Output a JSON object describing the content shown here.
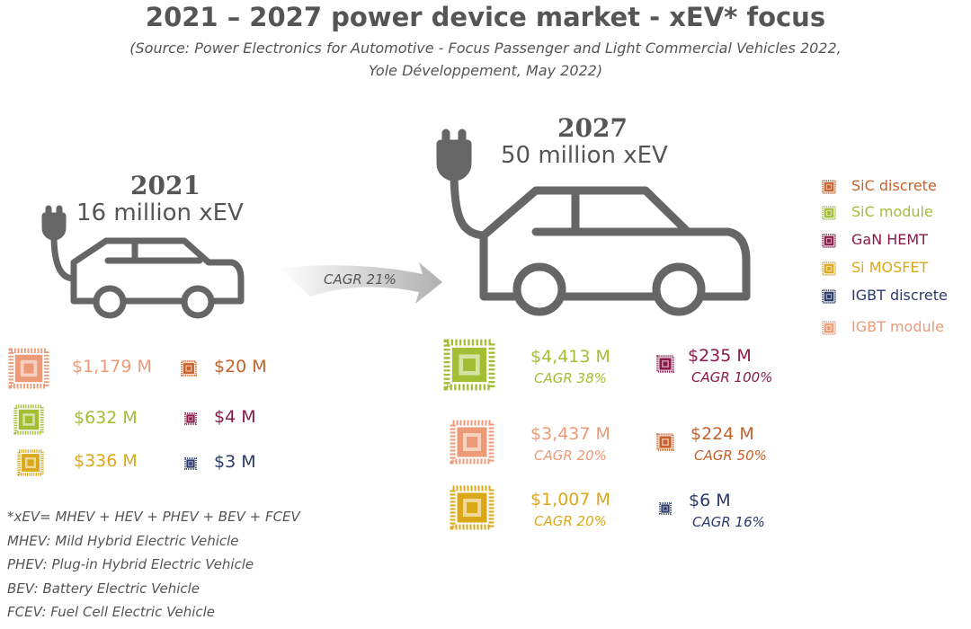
{
  "header": {
    "title": "2021 – 2027 power device market - xEV* focus",
    "source": [
      "(Source: Power Electronics for Automotive - Focus Passenger and Light Commercial Vehicles 2022,",
      "Yole Développement, May 2022)"
    ]
  },
  "y2021": {
    "year": "2021",
    "subtitle": "16 million xEV",
    "items": [
      {
        "value": "$1,179 M",
        "color": "#ec9a78"
      },
      {
        "value": "$20 M",
        "color": "#c8602a"
      },
      {
        "value": "$632 M",
        "color": "#a2bf34"
      },
      {
        "value": "$4 M",
        "color": "#8a1a4a"
      },
      {
        "value": "$336 M",
        "color": "#dba81a"
      },
      {
        "value": "$3 M",
        "color": "#2a3a6a"
      }
    ]
  },
  "growth": "CAGR 21%",
  "y2027": {
    "year": "2027",
    "subtitle": "50 million xEV",
    "items": [
      {
        "value": "$4,413 M",
        "cagr": "CAGR 38%",
        "color": "#a2bf34"
      },
      {
        "value": "$235 M",
        "cagr": "CAGR 100%",
        "color": "#8a1a4a"
      },
      {
        "value": "$3,437 M",
        "cagr": "CAGR 20%",
        "color": "#ec9a78"
      },
      {
        "value": "$224 M",
        "cagr": "CAGR 50%",
        "color": "#c8602a"
      },
      {
        "value": "$1,007 M",
        "cagr": "CAGR 20%",
        "color": "#dba81a"
      },
      {
        "value": "$6 M",
        "cagr": "CAGR 16%",
        "color": "#2a3a6a"
      }
    ]
  },
  "legend": [
    {
      "label": "SiC discrete",
      "color": "#c8602a"
    },
    {
      "label": "SiC module",
      "color": "#a2bf34"
    },
    {
      "label": "GaN HEMT",
      "color": "#8a1a4a"
    },
    {
      "label": "Si MOSFET",
      "color": "#dba81a"
    },
    {
      "label": "IGBT discrete",
      "color": "#2a3a6a"
    },
    {
      "label": "IGBT module",
      "color": "#ec9a78"
    }
  ],
  "notes": [
    "*xEV= MHEV + HEV + PHEV + BEV + FCEV",
    "MHEV: Mild Hybrid Electric Vehicle",
    "PHEV: Plug-in Hybrid Electric Vehicle",
    "BEV: Battery Electric Vehicle",
    "FCEV: Fuel Cell Electric Vehicle"
  ]
}
